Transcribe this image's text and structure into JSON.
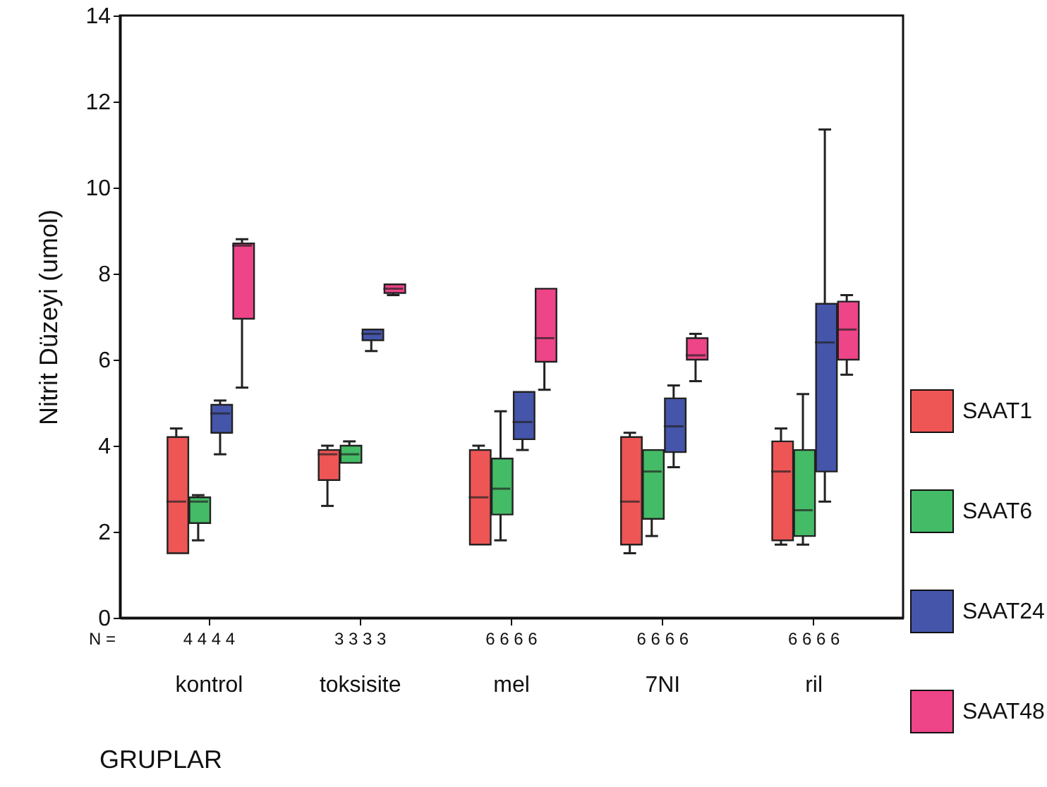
{
  "chart_data": {
    "type": "box",
    "xlabel": "GRUPLAR",
    "ylabel": "Nitrit Düzeyi (umol)",
    "categories": [
      "kontrol",
      "toksisite",
      "mel",
      "7NI",
      "ril"
    ],
    "ylim": [
      0,
      14
    ],
    "yticks": [
      0,
      2,
      4,
      6,
      8,
      10,
      12,
      14
    ],
    "grid": false,
    "legend": "right",
    "series": [
      {
        "name": "SAAT1",
        "color": "#ee5555",
        "boxes": [
          {
            "low": 1.5,
            "q1": 1.5,
            "median": 2.7,
            "q3": 4.2,
            "high": 4.4
          },
          {
            "low": 2.6,
            "q1": 3.2,
            "median": 3.8,
            "q3": 3.9,
            "high": 4.0
          },
          {
            "low": 1.7,
            "q1": 1.7,
            "median": 2.8,
            "q3": 3.9,
            "high": 4.0
          },
          {
            "low": 1.5,
            "q1": 1.7,
            "median": 2.7,
            "q3": 4.2,
            "high": 4.3
          },
          {
            "low": 1.7,
            "q1": 1.8,
            "median": 3.4,
            "q3": 4.1,
            "high": 4.4
          }
        ]
      },
      {
        "name": "SAAT6",
        "color": "#44bb66",
        "boxes": [
          {
            "low": 1.8,
            "q1": 2.2,
            "median": 2.7,
            "q3": 2.8,
            "high": 2.85
          },
          {
            "low": 3.6,
            "q1": 3.6,
            "median": 3.8,
            "q3": 4.0,
            "high": 4.1
          },
          {
            "low": 1.8,
            "q1": 2.4,
            "median": 3.0,
            "q3": 3.7,
            "high": 4.8
          },
          {
            "low": 1.9,
            "q1": 2.3,
            "median": 3.4,
            "q3": 3.9,
            "high": 3.9
          },
          {
            "low": 1.7,
            "q1": 1.9,
            "median": 2.5,
            "q3": 3.9,
            "high": 5.2
          }
        ]
      },
      {
        "name": "SAAT24",
        "color": "#4455aa",
        "boxes": [
          {
            "low": 3.8,
            "q1": 4.3,
            "median": 4.75,
            "q3": 4.95,
            "high": 5.05
          },
          {
            "low": 6.2,
            "q1": 6.45,
            "median": 6.6,
            "q3": 6.7,
            "high": 6.7
          },
          {
            "low": 3.9,
            "q1": 4.15,
            "median": 4.55,
            "q3": 5.25,
            "high": 5.25
          },
          {
            "low": 3.5,
            "q1": 3.85,
            "median": 4.45,
            "q3": 5.1,
            "high": 5.4
          },
          {
            "low": 2.7,
            "q1": 3.4,
            "median": 6.4,
            "q3": 7.3,
            "high": 11.35
          }
        ]
      },
      {
        "name": "SAAT48",
        "color": "#ee4488",
        "boxes": [
          {
            "low": 5.35,
            "q1": 6.95,
            "median": 8.65,
            "q3": 8.7,
            "high": 8.8
          },
          {
            "low": 7.5,
            "q1": 7.55,
            "median": 7.65,
            "q3": 7.75,
            "high": 7.75
          },
          {
            "low": 5.3,
            "q1": 5.95,
            "median": 6.5,
            "q3": 7.65,
            "high": 7.65
          },
          {
            "low": 5.5,
            "q1": 6.0,
            "median": 6.1,
            "q3": 6.5,
            "high": 6.6
          },
          {
            "low": 5.65,
            "q1": 6.0,
            "median": 6.7,
            "q3": 7.35,
            "high": 7.5
          }
        ]
      }
    ],
    "annotations": [
      "N =",
      "4 4 4 4",
      "3 3 3 3",
      "6 6 6 6",
      "6 6 6 6",
      "6 6 6 6"
    ]
  }
}
